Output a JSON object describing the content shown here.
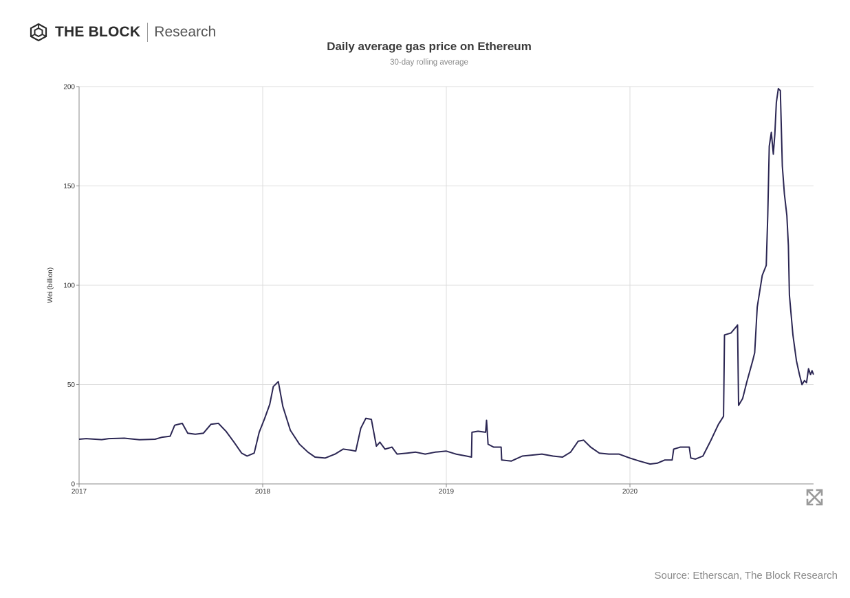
{
  "brand": {
    "name": "THE BLOCK",
    "section": "Research"
  },
  "source": "Source: Etherscan, The Block Research",
  "colors": {
    "line": "#2b2653",
    "grid": "#dcdcdc",
    "axis": "#888888",
    "icon": "#9a9a9a"
  },
  "chart_data": {
    "type": "line",
    "title": "Daily average gas price on Ethereum",
    "subtitle": "30-day rolling average",
    "xlabel": "",
    "ylabel": "Wei (billion)",
    "x_ticks": [
      "2017",
      "2018",
      "2019",
      "2020"
    ],
    "y_ticks": [
      0,
      50,
      100,
      150,
      200
    ],
    "xlim": [
      "2017-01-01",
      "2020-12-31"
    ],
    "ylim": [
      0,
      200
    ],
    "grid": true,
    "series": [
      {
        "name": "",
        "points": [
          [
            "2017-01-01",
            22.5
          ],
          [
            "2017-01-15",
            22.8
          ],
          [
            "2017-02-15",
            22.3
          ],
          [
            "2017-03-01",
            22.8
          ],
          [
            "2017-04-01",
            23.0
          ],
          [
            "2017-05-01",
            22.2
          ],
          [
            "2017-06-01",
            22.5
          ],
          [
            "2017-06-15",
            23.5
          ],
          [
            "2017-07-01",
            24.0
          ],
          [
            "2017-07-10",
            29.5
          ],
          [
            "2017-07-25",
            30.5
          ],
          [
            "2017-08-05",
            25.5
          ],
          [
            "2017-08-20",
            25.0
          ],
          [
            "2017-09-05",
            25.5
          ],
          [
            "2017-09-20",
            30.0
          ],
          [
            "2017-10-05",
            30.5
          ],
          [
            "2017-10-20",
            26.5
          ],
          [
            "2017-11-05",
            21.0
          ],
          [
            "2017-11-20",
            15.5
          ],
          [
            "2017-12-01",
            14.0
          ],
          [
            "2017-12-15",
            15.5
          ],
          [
            "2017-12-25",
            26.0
          ],
          [
            "2018-01-05",
            33.0
          ],
          [
            "2018-01-15",
            40.0
          ],
          [
            "2018-01-22",
            49.0
          ],
          [
            "2018-02-01",
            51.5
          ],
          [
            "2018-02-10",
            39.0
          ],
          [
            "2018-02-25",
            27.0
          ],
          [
            "2018-03-15",
            20.0
          ],
          [
            "2018-04-01",
            16.0
          ],
          [
            "2018-04-15",
            13.5
          ],
          [
            "2018-05-05",
            13.0
          ],
          [
            "2018-05-25",
            15.0
          ],
          [
            "2018-06-10",
            17.5
          ],
          [
            "2018-06-25",
            17.0
          ],
          [
            "2018-07-05",
            16.5
          ],
          [
            "2018-07-15",
            28.0
          ],
          [
            "2018-07-25",
            33.0
          ],
          [
            "2018-08-05",
            32.5
          ],
          [
            "2018-08-15",
            19.0
          ],
          [
            "2018-08-22",
            21.0
          ],
          [
            "2018-09-01",
            17.5
          ],
          [
            "2018-09-15",
            18.5
          ],
          [
            "2018-09-25",
            15.0
          ],
          [
            "2018-10-15",
            15.5
          ],
          [
            "2018-11-01",
            16.0
          ],
          [
            "2018-11-20",
            15.0
          ],
          [
            "2018-12-10",
            16.0
          ],
          [
            "2019-01-01",
            16.5
          ],
          [
            "2019-01-20",
            15.0
          ],
          [
            "2019-02-10",
            14.0
          ],
          [
            "2019-02-20",
            13.5
          ],
          [
            "2019-02-21",
            26.0
          ],
          [
            "2019-03-05",
            26.5
          ],
          [
            "2019-03-20",
            26.0
          ],
          [
            "2019-03-22",
            32.0
          ],
          [
            "2019-03-25",
            20.0
          ],
          [
            "2019-04-05",
            18.5
          ],
          [
            "2019-04-20",
            18.5
          ],
          [
            "2019-04-21",
            12.0
          ],
          [
            "2019-05-10",
            11.5
          ],
          [
            "2019-06-01",
            14.0
          ],
          [
            "2019-06-20",
            14.5
          ],
          [
            "2019-07-10",
            15.0
          ],
          [
            "2019-08-01",
            14.0
          ],
          [
            "2019-08-20",
            13.5
          ],
          [
            "2019-09-05",
            16.0
          ],
          [
            "2019-09-20",
            21.5
          ],
          [
            "2019-10-01",
            22.0
          ],
          [
            "2019-10-15",
            18.5
          ],
          [
            "2019-11-01",
            15.5
          ],
          [
            "2019-11-20",
            15.0
          ],
          [
            "2019-12-10",
            15.0
          ],
          [
            "2020-01-01",
            13.0
          ],
          [
            "2020-01-20",
            11.5
          ],
          [
            "2020-02-10",
            10.0
          ],
          [
            "2020-02-25",
            10.5
          ],
          [
            "2020-03-10",
            12.0
          ],
          [
            "2020-03-25",
            12.0
          ],
          [
            "2020-03-28",
            17.5
          ],
          [
            "2020-04-10",
            18.5
          ],
          [
            "2020-04-28",
            18.5
          ],
          [
            "2020-05-01",
            13.0
          ],
          [
            "2020-05-10",
            12.5
          ],
          [
            "2020-05-25",
            14.0
          ],
          [
            "2020-06-10",
            22.0
          ],
          [
            "2020-06-25",
            30.0
          ],
          [
            "2020-07-05",
            34.0
          ],
          [
            "2020-07-07",
            75.0
          ],
          [
            "2020-07-20",
            76.0
          ],
          [
            "2020-07-30",
            79.0
          ],
          [
            "2020-08-02",
            80.0
          ],
          [
            "2020-08-04",
            39.5
          ],
          [
            "2020-08-12",
            43.0
          ],
          [
            "2020-08-20",
            51.0
          ],
          [
            "2020-09-01",
            62.0
          ],
          [
            "2020-09-05",
            66.0
          ],
          [
            "2020-09-10",
            89.0
          ],
          [
            "2020-09-20",
            105.0
          ],
          [
            "2020-09-28",
            110.0
          ],
          [
            "2020-10-01",
            135.0
          ],
          [
            "2020-10-04",
            170.0
          ],
          [
            "2020-10-08",
            177.0
          ],
          [
            "2020-10-12",
            166.0
          ],
          [
            "2020-10-15",
            176.0
          ],
          [
            "2020-10-18",
            192.0
          ],
          [
            "2020-10-22",
            199.0
          ],
          [
            "2020-10-26",
            198.0
          ],
          [
            "2020-10-30",
            160.0
          ],
          [
            "2020-11-03",
            146.0
          ],
          [
            "2020-11-08",
            135.0
          ],
          [
            "2020-11-11",
            120.0
          ],
          [
            "2020-11-13",
            95.0
          ],
          [
            "2020-11-20",
            75.0
          ],
          [
            "2020-11-27",
            62.0
          ],
          [
            "2020-12-03",
            55.0
          ],
          [
            "2020-12-08",
            50.0
          ],
          [
            "2020-12-13",
            52.0
          ],
          [
            "2020-12-17",
            51.0
          ],
          [
            "2020-12-21",
            58.0
          ],
          [
            "2020-12-25",
            55.0
          ],
          [
            "2020-12-28",
            57.0
          ],
          [
            "2020-12-31",
            55.0
          ]
        ]
      }
    ]
  }
}
